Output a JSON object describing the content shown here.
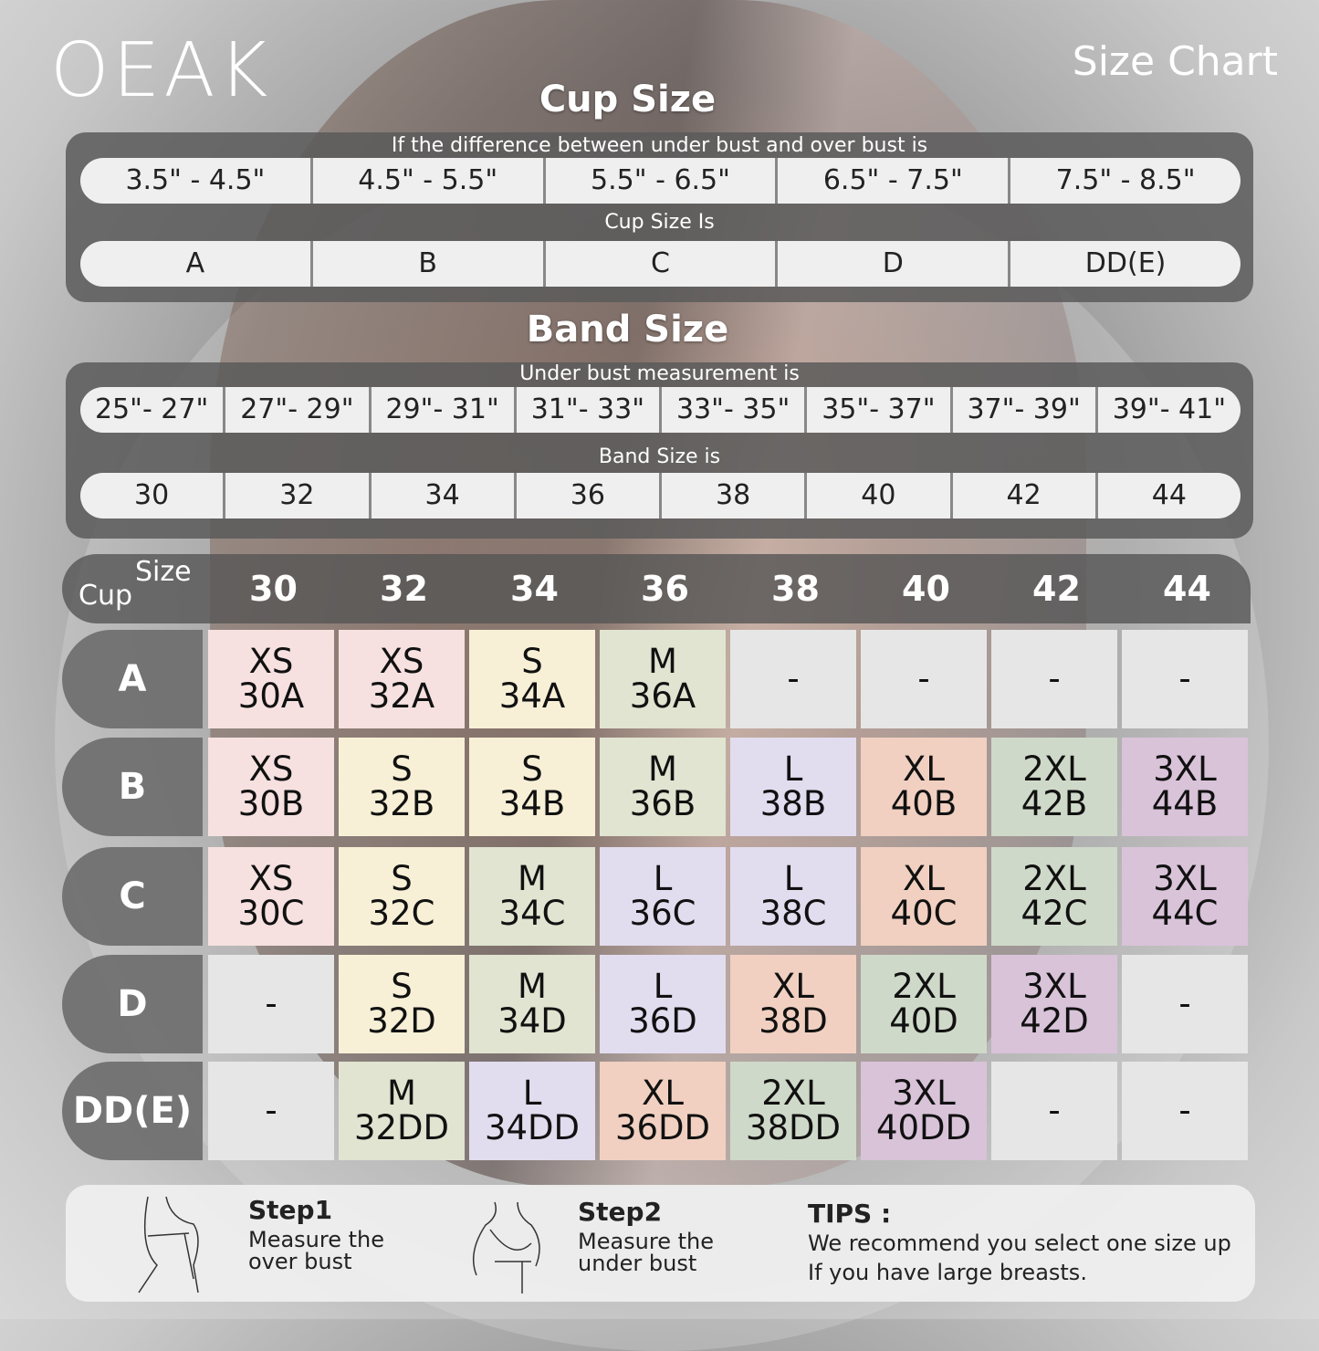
{
  "brand": "OEAK",
  "title": "Size Chart",
  "cup_section": {
    "title": "Cup Size",
    "caption1": "If the  difference between under bust and over bust is",
    "ranges": [
      "3.5\" -  4.5\"",
      "4.5\" -  5.5\"",
      "5.5\" -  6.5\"",
      "6.5\" -  7.5\"",
      "7.5\" -  8.5\""
    ],
    "caption2": "Cup Size Is",
    "cups": [
      "A",
      "B",
      "C",
      "D",
      "DD(E)"
    ]
  },
  "band_section": {
    "title": "Band Size",
    "caption1": "Under bust measurement is",
    "ranges": [
      "25\"- 27\"",
      "27\"- 29\"",
      "29\"- 31\"",
      "31\"- 33\"",
      "33\"- 35\"",
      "35\"- 37\"",
      "37\"- 39\"",
      "39\"- 41\""
    ],
    "caption2": "Band Size is",
    "bands": [
      "30",
      "32",
      "34",
      "36",
      "38",
      "40",
      "42",
      "44"
    ]
  },
  "table": {
    "corner_cup": "Cup",
    "corner_size": "Size",
    "columns": [
      "30",
      "32",
      "34",
      "36",
      "38",
      "40",
      "42",
      "44"
    ],
    "colors": {
      "XS": "#f6e1e0",
      "S": "#f7f0d6",
      "M": "#e0e4d0",
      "L": "#e2dcef",
      "XL": "#f1d0c1",
      "2XL": "#cfd9c9",
      "3XL": "#d9c3d9",
      "-": "#e6e6e6"
    },
    "rows": [
      {
        "cup": "A",
        "cells": [
          [
            "XS",
            "30A"
          ],
          [
            "XS",
            "32A"
          ],
          [
            "S",
            "34A"
          ],
          [
            "M",
            "36A"
          ],
          [
            "-",
            ""
          ],
          [
            "-",
            ""
          ],
          [
            "-",
            ""
          ],
          [
            "-",
            ""
          ]
        ]
      },
      {
        "cup": "B",
        "cells": [
          [
            "XS",
            "30B"
          ],
          [
            "S",
            "32B"
          ],
          [
            "S",
            "34B"
          ],
          [
            "M",
            "36B"
          ],
          [
            "L",
            "38B"
          ],
          [
            "XL",
            "40B"
          ],
          [
            "2XL",
            "42B"
          ],
          [
            "3XL",
            "44B"
          ]
        ]
      },
      {
        "cup": "C",
        "cells": [
          [
            "XS",
            "30C"
          ],
          [
            "S",
            "32C"
          ],
          [
            "M",
            "34C"
          ],
          [
            "L",
            "36C"
          ],
          [
            "L",
            "38C"
          ],
          [
            "XL",
            "40C"
          ],
          [
            "2XL",
            "42C"
          ],
          [
            "3XL",
            "44C"
          ]
        ]
      },
      {
        "cup": "D",
        "cells": [
          [
            "-",
            ""
          ],
          [
            "S",
            "32D"
          ],
          [
            "M",
            "34D"
          ],
          [
            "L",
            "36D"
          ],
          [
            "XL",
            "38D"
          ],
          [
            "2XL",
            "40D"
          ],
          [
            "3XL",
            "42D"
          ],
          [
            "-",
            ""
          ]
        ]
      },
      {
        "cup": "DD(E)",
        "cells": [
          [
            "-",
            ""
          ],
          [
            "M",
            "32DD"
          ],
          [
            "L",
            "34DD"
          ],
          [
            "XL",
            "36DD"
          ],
          [
            "2XL",
            "38DD"
          ],
          [
            "3XL",
            "40DD"
          ],
          [
            "-",
            ""
          ],
          [
            "-",
            ""
          ]
        ]
      }
    ]
  },
  "steps": {
    "step1_title": "Step1",
    "step1_l1": "Measure the",
    "step1_l2": "over bust",
    "step2_title": "Step2",
    "step2_l1": "Measure the",
    "step2_l2": "under bust",
    "tips_title": "TIPS :",
    "tips_l1": "We recommend you select one size up",
    "tips_l2": "If you have large breasts."
  }
}
